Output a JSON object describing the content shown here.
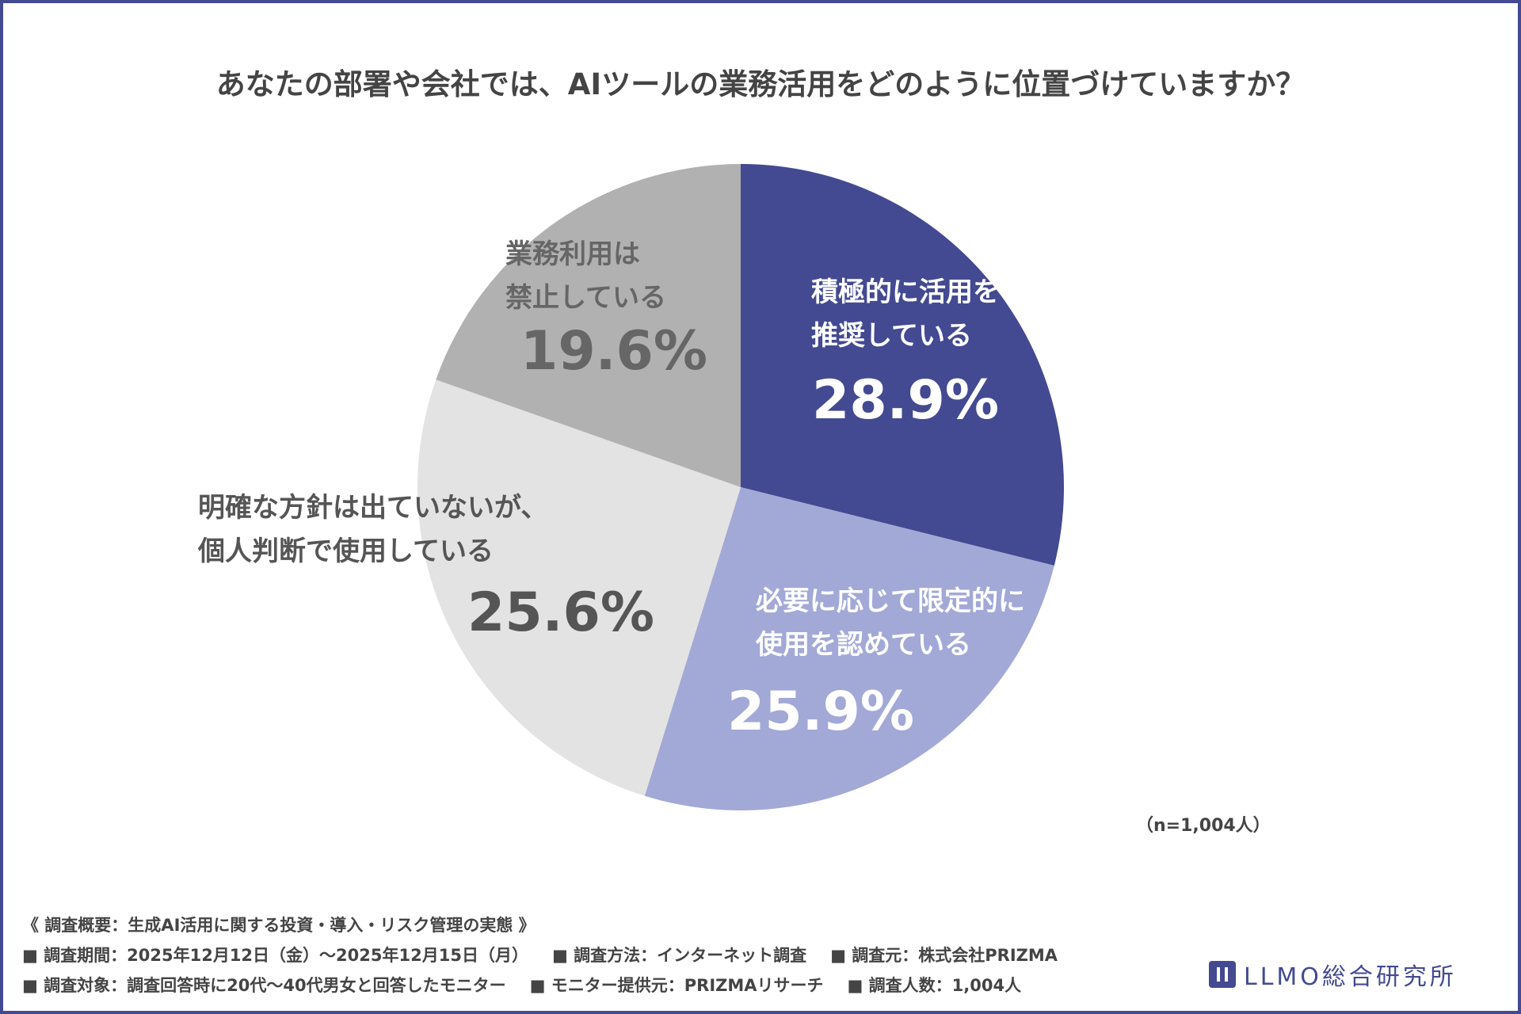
{
  "chart_data": {
    "type": "pie",
    "title": "あなたの部署や会社では、AIツールの業務活用をどのように位置づけていますか？",
    "categories": [
      "積極的に活用を\n推奨している",
      "必要に応じて限定的に\n使用を認めている",
      "明確な方針は出ていないが、\n個人判断で使用している",
      "業務利用は\n禁止している"
    ],
    "values": [
      28.9,
      25.9,
      25.6,
      19.6
    ],
    "value_labels": [
      "28.9%",
      "25.9%",
      "25.6%",
      "19.6%"
    ],
    "colors": [
      "#434a91",
      "#a2a9d6",
      "#e3e3e3",
      "#b1b1b1"
    ],
    "note": "（n=1,004人）"
  },
  "footer": {
    "lines": [
      [
        "《 調査概要：生成AI活用に関する投資・導入・リスク管理の実態 》"
      ],
      [
        "■ 調査期間：2025年12月12日（金）～2025年12月15日（月）",
        "■ 調査方法：インターネット調査",
        "■ 調査元：株式会社PRIZMA"
      ],
      [
        "■ 調査対象：調査回答時に20代～40代男女と回答したモニター",
        "■ モニター提供元：PRIZMAリサーチ",
        "■ 調査人数：1,004人"
      ]
    ],
    "logo": "LLMO総合研究所"
  }
}
